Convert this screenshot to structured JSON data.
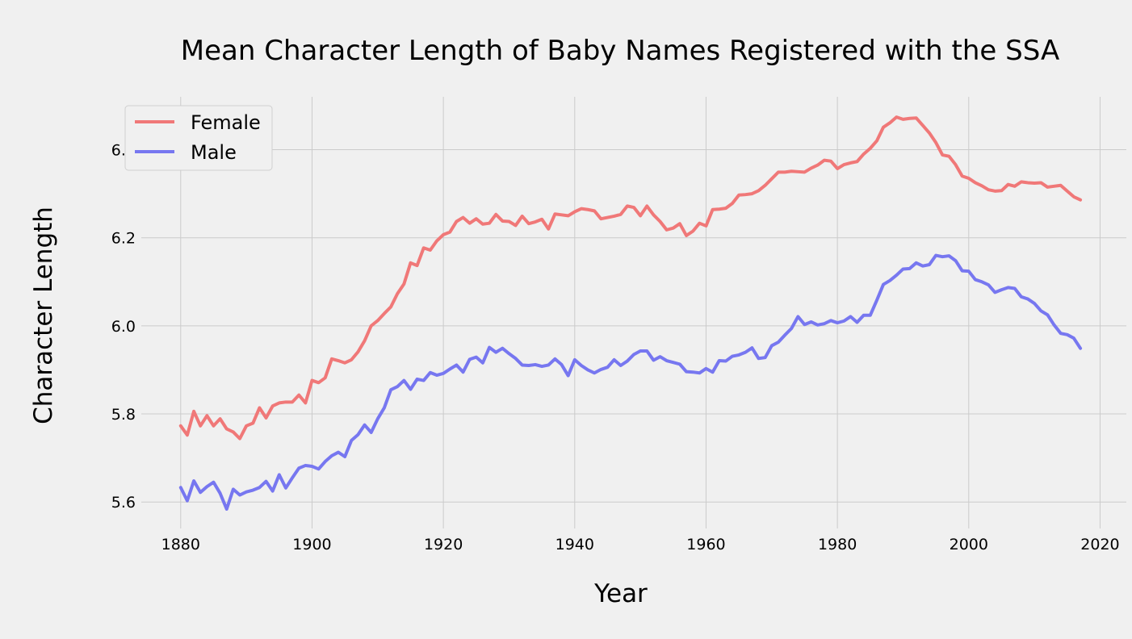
{
  "chart_data": {
    "type": "line",
    "title": "Mean Character Length of Baby Names Registered with the SSA",
    "xlabel": "Year",
    "ylabel": "Character Length",
    "xlim": [
      1874,
      2024
    ],
    "ylim": [
      5.54,
      6.52
    ],
    "xticks": [
      1880,
      1900,
      1920,
      1940,
      1960,
      1980,
      2000,
      2020
    ],
    "yticks": [
      5.6,
      5.8,
      6.0,
      6.2,
      6.4
    ],
    "grid": true,
    "legend": "top-left",
    "x_start": 1880,
    "series": [
      {
        "name": "Female",
        "color": "#f07878",
        "values": [
          5.773,
          5.752,
          5.806,
          5.773,
          5.796,
          5.773,
          5.789,
          5.766,
          5.759,
          5.744,
          5.773,
          5.779,
          5.814,
          5.791,
          5.818,
          5.825,
          5.827,
          5.827,
          5.843,
          5.825,
          5.876,
          5.871,
          5.882,
          5.925,
          5.921,
          5.916,
          5.923,
          5.941,
          5.966,
          6.0,
          6.012,
          6.028,
          6.043,
          6.073,
          6.095,
          6.143,
          6.137,
          6.177,
          6.172,
          6.193,
          6.207,
          6.213,
          6.237,
          6.246,
          6.233,
          6.243,
          6.231,
          6.233,
          6.253,
          6.238,
          6.237,
          6.228,
          6.249,
          6.232,
          6.236,
          6.242,
          6.22,
          6.254,
          6.252,
          6.25,
          6.259,
          6.266,
          6.264,
          6.261,
          6.243,
          6.246,
          6.249,
          6.253,
          6.272,
          6.269,
          6.25,
          6.272,
          6.252,
          6.237,
          6.218,
          6.222,
          6.232,
          6.205,
          6.215,
          6.233,
          6.227,
          6.264,
          6.265,
          6.267,
          6.278,
          6.297,
          6.298,
          6.3,
          6.307,
          6.319,
          6.334,
          6.349,
          6.349,
          6.351,
          6.35,
          6.349,
          6.358,
          6.365,
          6.376,
          6.374,
          6.357,
          6.366,
          6.37,
          6.373,
          6.39,
          6.403,
          6.42,
          6.451,
          6.461,
          6.474,
          6.469,
          6.471,
          6.472,
          6.455,
          6.438,
          6.416,
          6.388,
          6.385,
          6.366,
          6.34,
          6.335,
          6.325,
          6.318,
          6.309,
          6.306,
          6.307,
          6.321,
          6.317,
          6.327,
          6.325,
          6.324,
          6.325,
          6.315,
          6.317,
          6.319,
          6.306,
          6.293,
          6.286
        ]
      },
      {
        "name": "Male",
        "color": "#7777f0",
        "values": [
          5.633,
          5.603,
          5.648,
          5.622,
          5.635,
          5.645,
          5.62,
          5.584,
          5.629,
          5.616,
          5.623,
          5.627,
          5.633,
          5.647,
          5.625,
          5.662,
          5.632,
          5.655,
          5.677,
          5.683,
          5.681,
          5.675,
          5.692,
          5.705,
          5.713,
          5.703,
          5.74,
          5.753,
          5.775,
          5.758,
          5.789,
          5.814,
          5.855,
          5.862,
          5.876,
          5.856,
          5.879,
          5.876,
          5.894,
          5.888,
          5.892,
          5.902,
          5.911,
          5.895,
          5.924,
          5.929,
          5.916,
          5.951,
          5.94,
          5.949,
          5.937,
          5.926,
          5.911,
          5.91,
          5.912,
          5.908,
          5.911,
          5.925,
          5.912,
          5.887,
          5.923,
          5.91,
          5.9,
          5.893,
          5.901,
          5.906,
          5.923,
          5.91,
          5.92,
          5.935,
          5.943,
          5.943,
          5.922,
          5.93,
          5.921,
          5.917,
          5.913,
          5.896,
          5.895,
          5.893,
          5.903,
          5.895,
          5.921,
          5.92,
          5.931,
          5.934,
          5.94,
          5.95,
          5.926,
          5.928,
          5.955,
          5.963,
          5.979,
          5.994,
          6.021,
          6.003,
          6.009,
          6.002,
          6.005,
          6.012,
          6.007,
          6.011,
          6.021,
          6.008,
          6.024,
          6.024,
          6.058,
          6.094,
          6.103,
          6.115,
          6.129,
          6.13,
          6.143,
          6.136,
          6.139,
          6.16,
          6.157,
          6.159,
          6.148,
          6.125,
          6.124,
          6.105,
          6.1,
          6.093,
          6.076,
          6.082,
          6.087,
          6.085,
          6.066,
          6.061,
          6.051,
          6.034,
          6.025,
          6.002,
          5.983,
          5.98,
          5.972,
          5.949
        ]
      }
    ]
  }
}
